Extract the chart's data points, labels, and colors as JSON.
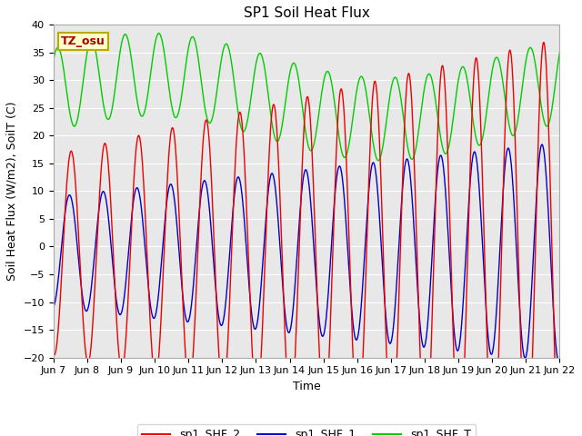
{
  "title": "SP1 Soil Heat Flux",
  "ylabel": "Soil Heat Flux (W/m2), SoilT (C)",
  "xlabel": "Time",
  "ylim": [
    -20,
    40
  ],
  "xlim_days": [
    0,
    15
  ],
  "tick_labels": [
    "Jun 7",
    "Jun 8",
    "Jun 9",
    "Jun 10",
    "Jun 11",
    "Jun 12",
    "Jun 13",
    "Jun 14",
    "Jun 15",
    "Jun 16",
    "Jun 17",
    "Jun 18",
    "Jun 19",
    "Jun 20",
    "Jun 21",
    "Jun 22"
  ],
  "annotation_text": "TZ_osu",
  "annotation_color": "#aa0000",
  "annotation_bg": "#ffffcc",
  "annotation_border": "#bbaa00",
  "colors": {
    "sp1_SHF_2": "#ee0000",
    "sp1_SHF_1": "#0000cc",
    "sp1_SHF_T": "#00cc00"
  },
  "legend_labels": [
    "sp1_SHF_2",
    "sp1_SHF_1",
    "sp1_SHF_T"
  ],
  "bg_color": "#e8e8e8",
  "grid_color": "#ffffff",
  "title_fontsize": 11,
  "label_fontsize": 9,
  "tick_fontsize": 8,
  "n_points": 5000
}
